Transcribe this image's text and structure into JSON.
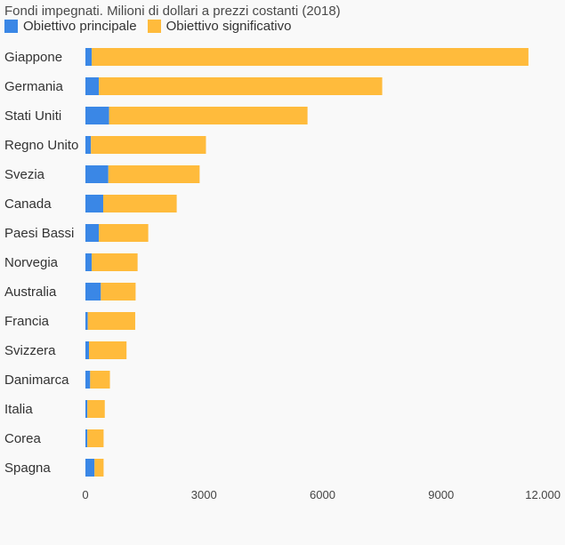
{
  "chart_data": {
    "type": "bar",
    "orientation": "horizontal",
    "stacked": true,
    "title": "Fondi impegnati. Milioni di dollari a prezzi costanti (2018)",
    "categories": [
      "Giappone",
      "Germania",
      "Stati Uniti",
      "Regno Unito",
      "Svezia",
      "Canada",
      "Paesi Bassi",
      "Norvegia",
      "Australia",
      "Francia",
      "Svizzera",
      "Danimarca",
      "Italia",
      "Corea",
      "Spagna"
    ],
    "series": [
      {
        "name": "Obiettivo principale",
        "color": "#3a87e6",
        "values": [
          160,
          340,
          600,
          140,
          580,
          450,
          340,
          160,
          390,
          60,
          90,
          120,
          50,
          50,
          230
        ]
      },
      {
        "name": "Obiettivo significativo",
        "color": "#ffbb3c",
        "values": [
          11050,
          7170,
          5020,
          2910,
          2310,
          1860,
          1250,
          1160,
          880,
          1200,
          950,
          500,
          440,
          410,
          230
        ]
      }
    ],
    "xlim": [
      0,
      12000
    ],
    "xticks": [
      0,
      3000,
      6000,
      9000,
      12000
    ],
    "xtick_labels": [
      "0",
      "3000",
      "6000",
      "9000",
      "12.000"
    ],
    "grid": false,
    "legend_position": "top-left"
  }
}
